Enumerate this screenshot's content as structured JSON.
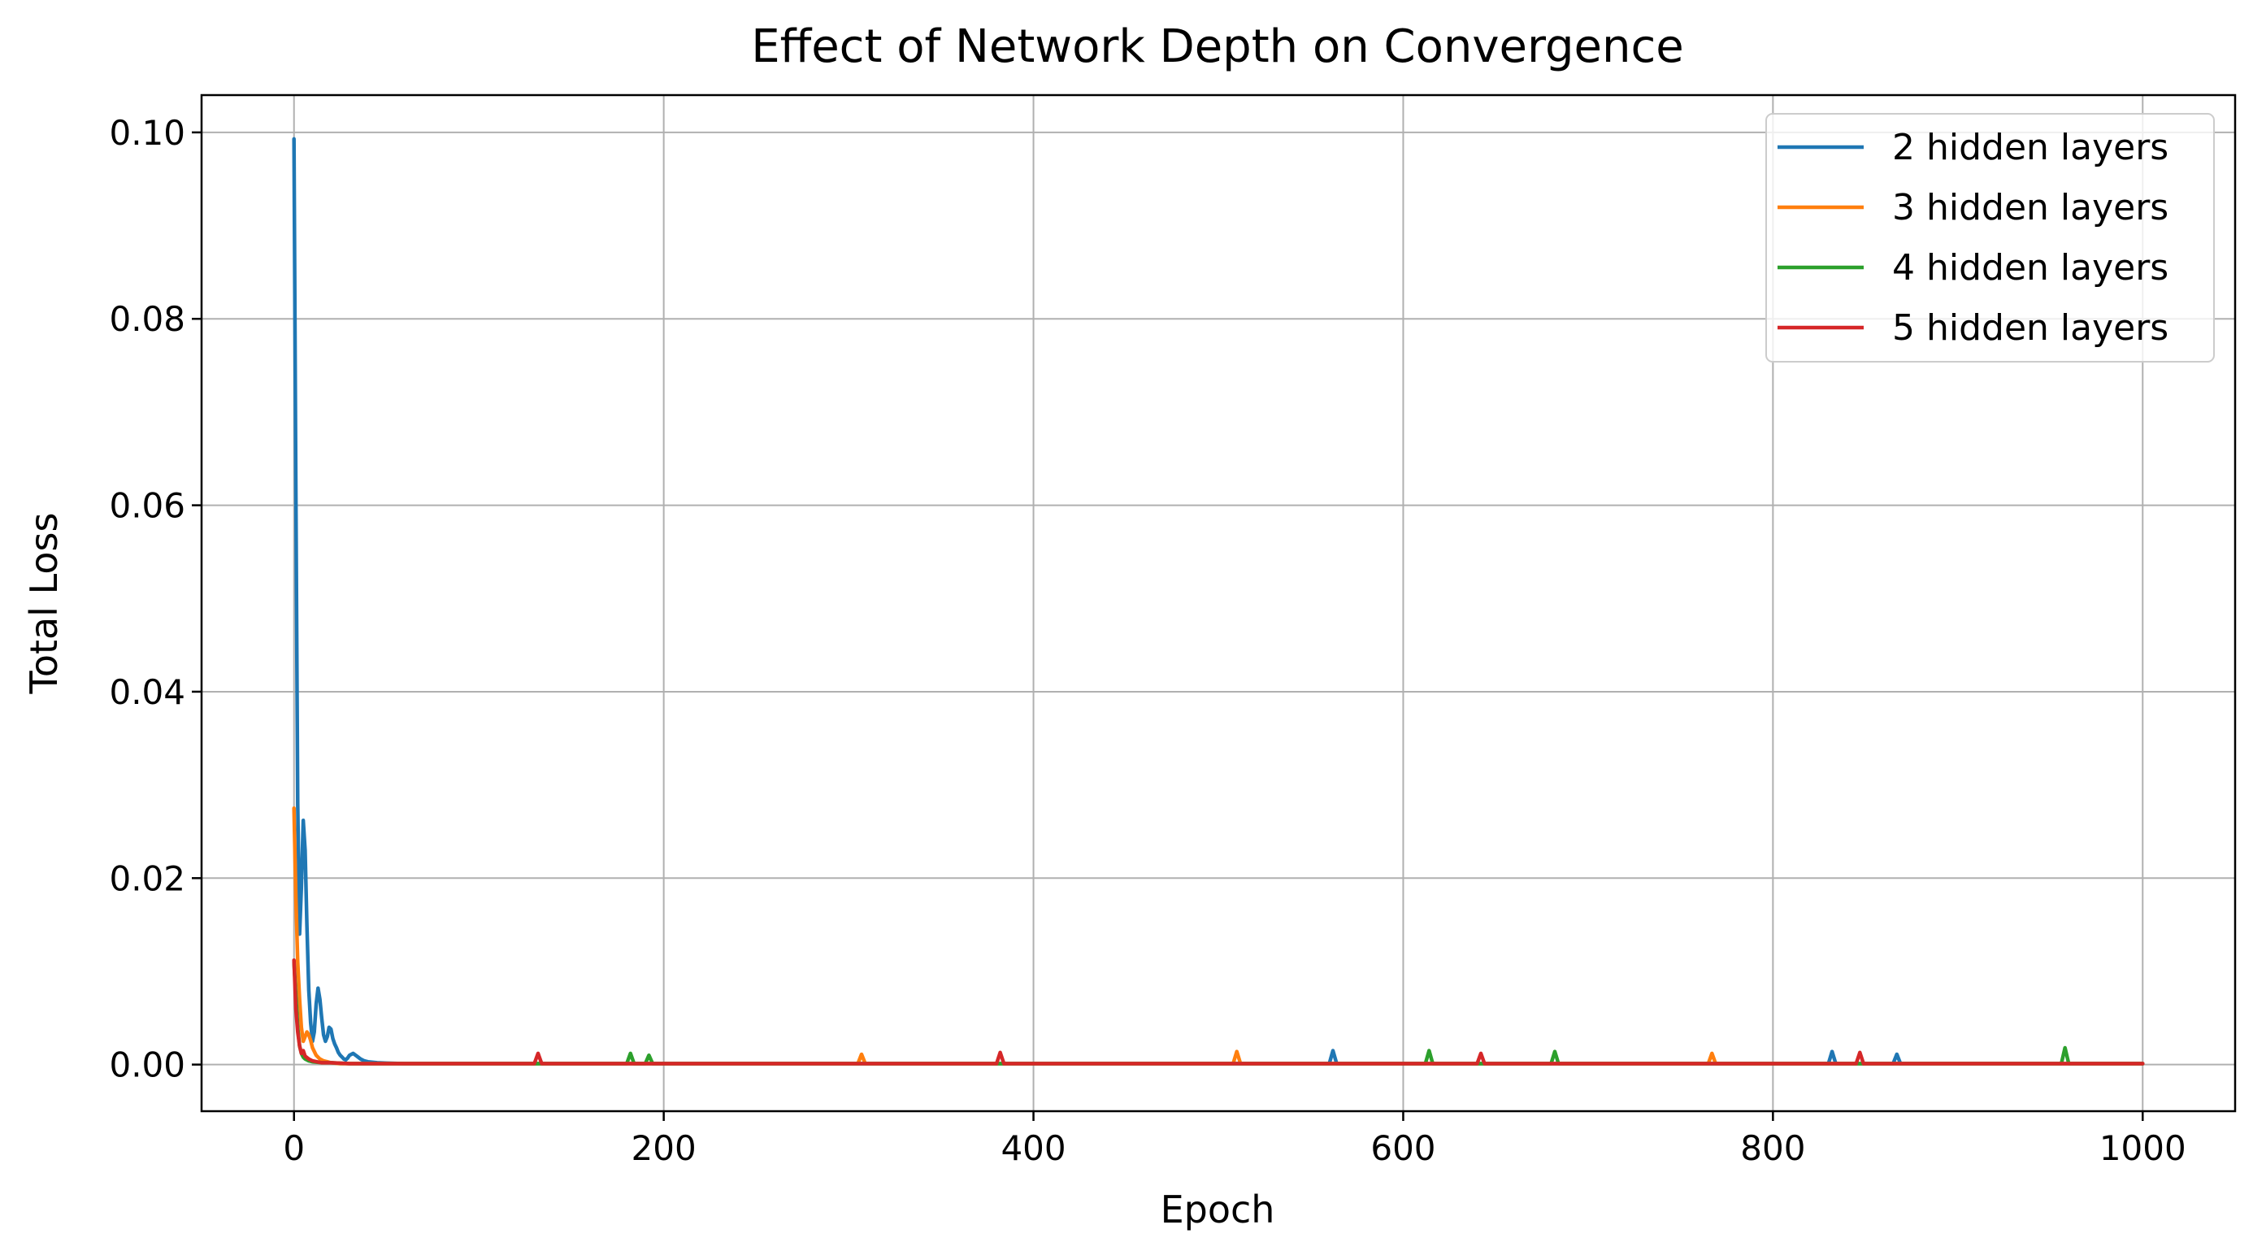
{
  "chart_data": {
    "type": "line",
    "title": "Effect of Network Depth on Convergence",
    "xlabel": "Epoch",
    "ylabel": "Total Loss",
    "xlim": [
      -50,
      1050
    ],
    "ylim": [
      -0.005,
      0.104
    ],
    "xticks": [
      0,
      200,
      400,
      600,
      800,
      1000
    ],
    "xtick_labels": [
      "0",
      "200",
      "400",
      "600",
      "800",
      "1000"
    ],
    "yticks": [
      0.0,
      0.02,
      0.04,
      0.06,
      0.08,
      0.1
    ],
    "ytick_labels": [
      "0.00",
      "0.02",
      "0.04",
      "0.06",
      "0.08",
      "0.10"
    ],
    "grid": true,
    "legend_position": "top-right",
    "series": [
      {
        "name": "2 hidden layers",
        "color": "#1f77b4",
        "x": [
          0,
          1,
          2,
          3,
          4,
          5,
          6,
          7,
          8,
          9,
          10,
          11,
          12,
          13,
          14,
          15,
          16,
          17,
          18,
          19,
          20,
          21,
          22,
          23,
          24,
          25,
          26,
          27,
          28,
          29,
          30,
          32,
          34,
          36,
          38,
          40,
          45,
          50,
          60,
          80,
          100,
          150,
          200,
          300,
          400,
          500,
          560,
          562,
          564,
          600,
          700,
          800,
          830,
          832,
          834,
          865,
          867,
          869,
          900,
          1000
        ],
        "y": [
          0.0993,
          0.062,
          0.028,
          0.014,
          0.019,
          0.0262,
          0.023,
          0.015,
          0.008,
          0.0045,
          0.0025,
          0.0035,
          0.0065,
          0.0082,
          0.007,
          0.005,
          0.0032,
          0.0025,
          0.003,
          0.004,
          0.0038,
          0.0028,
          0.0022,
          0.0018,
          0.0013,
          0.001,
          0.0008,
          0.0006,
          0.0005,
          0.0007,
          0.001,
          0.0012,
          0.0009,
          0.0006,
          0.0004,
          0.0003,
          0.0002,
          0.00015,
          0.0001,
          0.0001,
          0.0001,
          0.0001,
          0.0001,
          0.0001,
          0.0001,
          0.0001,
          0.0001,
          0.0015,
          0.0001,
          0.0001,
          0.0001,
          0.0001,
          0.0001,
          0.0014,
          0.0001,
          0.0001,
          0.0011,
          0.0001,
          0.0001,
          0.0001
        ]
      },
      {
        "name": "3 hidden layers",
        "color": "#ff7f0e",
        "x": [
          0,
          1,
          2,
          3,
          4,
          5,
          6,
          7,
          8,
          9,
          10,
          12,
          14,
          16,
          18,
          20,
          25,
          30,
          40,
          60,
          100,
          200,
          300,
          305,
          307,
          309,
          400,
          500,
          508,
          510,
          512,
          600,
          700,
          765,
          767,
          769,
          800,
          900,
          1000
        ],
        "y": [
          0.0275,
          0.018,
          0.011,
          0.007,
          0.004,
          0.0025,
          0.003,
          0.0035,
          0.0032,
          0.0026,
          0.0018,
          0.001,
          0.0006,
          0.0004,
          0.0003,
          0.0002,
          0.0001,
          0.0001,
          0.0001,
          0.0001,
          0.0001,
          0.0001,
          0.0001,
          0.0001,
          0.0011,
          0.0001,
          0.0001,
          0.0001,
          0.0001,
          0.0014,
          0.0001,
          0.0001,
          0.0001,
          0.0001,
          0.0012,
          0.0001,
          0.0001,
          0.0001,
          0.0001
        ]
      },
      {
        "name": "4 hidden layers",
        "color": "#2ca02c",
        "x": [
          0,
          1,
          2,
          3,
          4,
          5,
          6,
          8,
          10,
          15,
          20,
          30,
          40,
          60,
          100,
          180,
          182,
          184,
          190,
          192,
          194,
          300,
          400,
          600,
          612,
          614,
          616,
          680,
          682,
          684,
          700,
          800,
          956,
          958,
          960,
          1000
        ],
        "y": [
          0.011,
          0.0075,
          0.004,
          0.002,
          0.0012,
          0.0008,
          0.0006,
          0.0004,
          0.0003,
          0.0002,
          0.0002,
          0.0001,
          0.0001,
          0.0001,
          0.0001,
          0.0001,
          0.0012,
          0.0001,
          0.0001,
          0.001,
          0.0001,
          0.0001,
          0.0001,
          0.0001,
          0.0001,
          0.0015,
          0.0001,
          0.0001,
          0.0014,
          0.0001,
          0.0001,
          0.0001,
          0.0001,
          0.0018,
          0.0001,
          0.0001
        ]
      },
      {
        "name": "5 hidden layers",
        "color": "#d62728",
        "x": [
          0,
          1,
          2,
          3,
          4,
          5,
          6,
          8,
          10,
          15,
          20,
          30,
          40,
          60,
          100,
          130,
          132,
          134,
          200,
          300,
          380,
          382,
          384,
          500,
          600,
          640,
          642,
          644,
          700,
          800,
          845,
          847,
          849,
          900,
          1000
        ],
        "y": [
          0.0112,
          0.006,
          0.0035,
          0.002,
          0.0012,
          0.0015,
          0.0009,
          0.0006,
          0.0004,
          0.0002,
          0.0002,
          0.0001,
          0.0001,
          0.0001,
          0.0001,
          0.0001,
          0.0012,
          0.0001,
          0.0001,
          0.0001,
          0.0001,
          0.0013,
          0.0001,
          0.0001,
          0.0001,
          0.0001,
          0.0012,
          0.0001,
          0.0001,
          0.0001,
          0.0001,
          0.0013,
          0.0001,
          0.0001,
          0.0001
        ]
      }
    ]
  }
}
